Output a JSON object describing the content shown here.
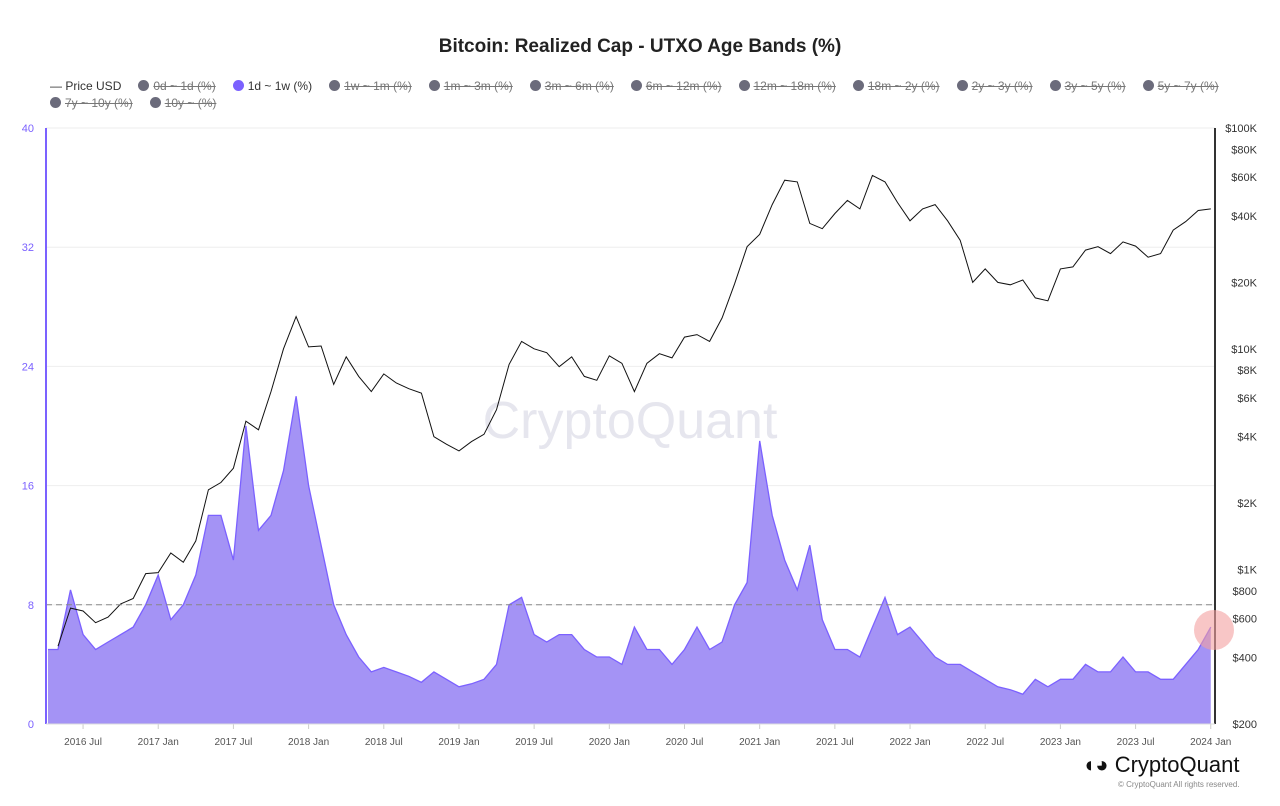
{
  "title": "Bitcoin: Realized Cap - UTXO Age Bands (%)",
  "legend": [
    {
      "label": "Price USD",
      "type": "line",
      "active": true
    },
    {
      "label": "0d ~ 1d (%)",
      "active": false
    },
    {
      "label": "1d ~ 1w (%)",
      "active": true,
      "color": "#7b61ff"
    },
    {
      "label": "1w ~ 1m (%)",
      "active": false
    },
    {
      "label": "1m ~ 3m (%)",
      "active": false
    },
    {
      "label": "3m ~ 6m (%)",
      "active": false
    },
    {
      "label": "6m ~ 12m (%)",
      "active": false
    },
    {
      "label": "12m ~ 18m (%)",
      "active": false
    },
    {
      "label": "18m ~ 2y (%)",
      "active": false
    },
    {
      "label": "2y ~ 3y (%)",
      "active": false
    },
    {
      "label": "3y ~ 5y (%)",
      "active": false
    },
    {
      "label": "5y ~ 7y (%)",
      "active": false
    },
    {
      "label": "7y ~ 10y (%)",
      "active": false
    },
    {
      "label": "10y ~ (%)",
      "active": false
    }
  ],
  "watermark": "CryptoQuant",
  "logo": "CryptoQuant",
  "copyright": "© CryptoQuant All rights reserved.",
  "chart_data": {
    "type": "area",
    "title": "Bitcoin: Realized Cap - UTXO Age Bands (%)",
    "x_ticks": [
      "2016 Jul",
      "2017 Jan",
      "2017 Jul",
      "2018 Jan",
      "2018 Jul",
      "2019 Jan",
      "2019 Jul",
      "2020 Jan",
      "2020 Jul",
      "2021 Jan",
      "2021 Jul",
      "2022 Jan",
      "2022 Jul",
      "2023 Jan",
      "2023 Jul",
      "2024 Jan"
    ],
    "y_left": {
      "ticks": [
        "0",
        "8",
        "16",
        "24",
        "32",
        "40"
      ],
      "range": [
        0,
        40
      ]
    },
    "y_right": {
      "scale": "log",
      "ticks": [
        "$200",
        "$400",
        "$600",
        "$800",
        "$1K",
        "$2K",
        "$4K",
        "$6K",
        "$8K",
        "$10K",
        "$20K",
        "$40K",
        "$60K",
        "$80K",
        "$100K"
      ],
      "range": [
        200,
        100000
      ]
    },
    "reference_line": {
      "value": 8,
      "style": "dashed",
      "color": "#e05050"
    },
    "highlight": {
      "date": "2024 Jan",
      "color": "#f4a0a0"
    },
    "start_month": "2016-05",
    "grid": true,
    "series": [
      {
        "name": "1d ~ 1w (%)",
        "axis": "left",
        "type": "area",
        "color": "#7b61ff",
        "fill": "#a493f5",
        "values": [
          5,
          9,
          6,
          5,
          5.5,
          6,
          6.5,
          8,
          10,
          7,
          8,
          10,
          14,
          14,
          11,
          20,
          13,
          14,
          17,
          22,
          16,
          12,
          8,
          6,
          4.5,
          3.5,
          3.8,
          3.5,
          3.2,
          2.8,
          3.5,
          3,
          2.5,
          2.7,
          3,
          4,
          8,
          8.5,
          6,
          5.5,
          6,
          6,
          5,
          4.5,
          4.5,
          4,
          6.5,
          5,
          5,
          4,
          5,
          6.5,
          5,
          5.5,
          8,
          9.5,
          19,
          14,
          11,
          9,
          12,
          7,
          5,
          5,
          4.5,
          6.5,
          8.5,
          6,
          6.5,
          5.5,
          4.5,
          4,
          4,
          3.5,
          3,
          2.5,
          2.3,
          2,
          3,
          2.5,
          3,
          3,
          4,
          3.5,
          3.5,
          4.5,
          3.5,
          3.5,
          3,
          3,
          4,
          5,
          6.5
        ]
      },
      {
        "name": "Price USD",
        "axis": "right",
        "type": "line",
        "color": "#111111",
        "values": [
          450,
          670,
          650,
          575,
          610,
          700,
          740,
          960,
          970,
          1190,
          1080,
          1350,
          2300,
          2480,
          2880,
          4700,
          4300,
          6400,
          10000,
          14000,
          10200,
          10300,
          6900,
          9200,
          7500,
          6400,
          7700,
          7000,
          6600,
          6300,
          4000,
          3700,
          3450,
          3800,
          4100,
          5300,
          8500,
          10800,
          10000,
          9600,
          8300,
          9200,
          7500,
          7200,
          9300,
          8600,
          6400,
          8600,
          9500,
          9100,
          11300,
          11600,
          10800,
          13800,
          19700,
          29000,
          33000,
          45000,
          58000,
          57000,
          37000,
          35000,
          41000,
          47000,
          43000,
          61000,
          57000,
          46000,
          38000,
          43000,
          45000,
          38000,
          31000,
          20000,
          23000,
          20000,
          19500,
          20500,
          17000,
          16500,
          23000,
          23500,
          28000,
          29000,
          27000,
          30500,
          29200,
          26000,
          27000,
          34500,
          37700,
          42300,
          43000
        ]
      }
    ]
  }
}
